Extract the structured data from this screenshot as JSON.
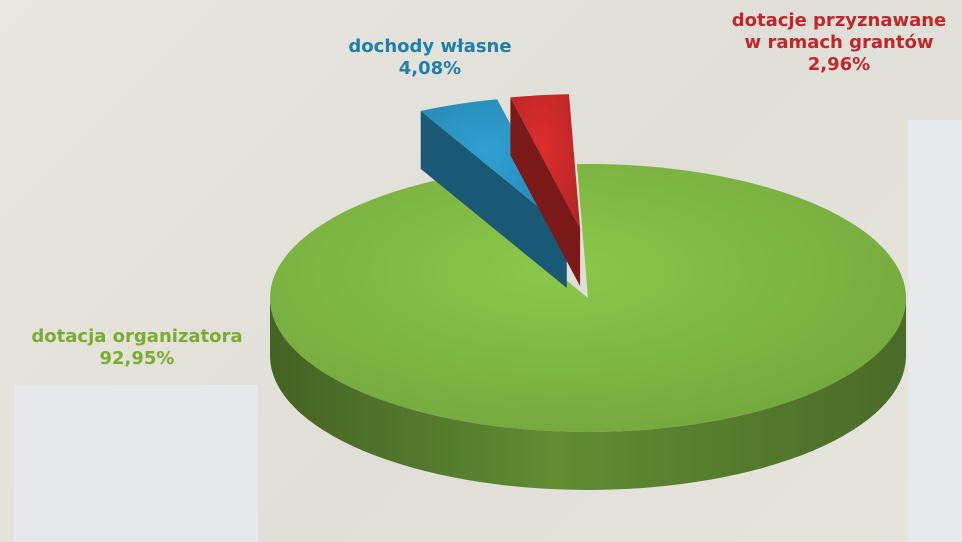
{
  "chart_data": {
    "type": "pie",
    "title": "",
    "slices": [
      {
        "label": "dotacja organizatora",
        "value": 92.95,
        "value_text": "92,95%",
        "color": "#7cb342"
      },
      {
        "label": "dochody własne",
        "value": 4.08,
        "value_text": "4,08%",
        "color": "#2a8fbd"
      },
      {
        "label": "dotacje przyznawane w ramach grantów",
        "label_lines": [
          "dotacje przyznawane",
          "w ramach grantów"
        ],
        "value": 2.96,
        "value_text": "2,96%",
        "color": "#c62828"
      }
    ],
    "exploded": [
      "dochody własne",
      "dotacje przyznawane w ramach grantów"
    ],
    "style": "3d"
  }
}
